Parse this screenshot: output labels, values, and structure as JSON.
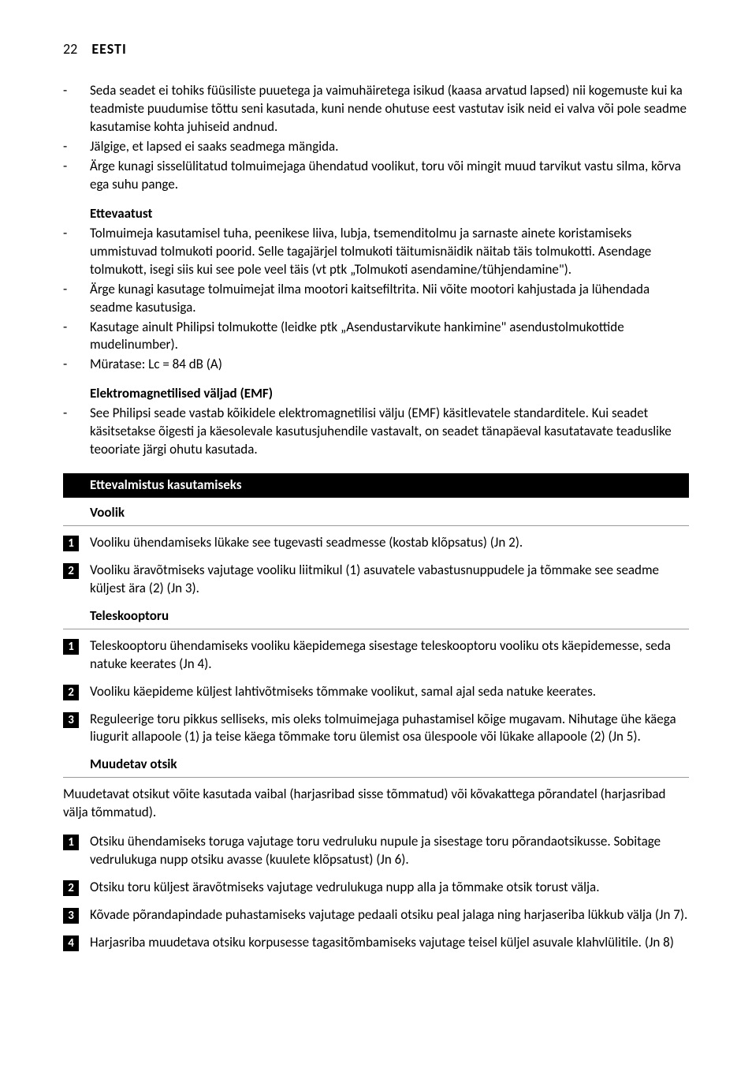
{
  "page": {
    "number": "22",
    "language": "EESTI"
  },
  "top_bullets": [
    "Seda seadet ei tohiks füüsiliste puuetega ja vaimuhäiretega isikud (kaasa arvatud lapsed) nii kogemuste kui ka teadmiste puudumise tõttu seni kasutada, kuni nende ohutuse eest vastutav isik neid ei valva või pole seadme kasutamise kohta juhiseid andnud.",
    "Jälgige, et lapsed ei saaks seadmega mängida.",
    "Ärge kunagi sisselülitatud tolmuimejaga ühendatud voolikut, toru või mingit muud tarvikut vastu silma, kõrva ega suhu pange."
  ],
  "ettevaatust": {
    "title": "Ettevaatust",
    "items": [
      "Tolmuimeja kasutamisel tuha, peenikese liiva, lubja, tsemenditolmu ja sarnaste ainete koristamiseks ummistuvad tolmukoti poorid. Selle tagajärjel tolmukoti täitumisnäidik näitab täis tolmukotti. Asendage tolmukott, isegi siis kui see pole veel täis (vt ptk „Tolmukoti asendamine/tühjendamine\").",
      "Ärge kunagi kasutage tolmuimejat ilma mootori kaitsefiltrita. Nii võite mootori kahjustada ja lühendada seadme kasutusiga.",
      "Kasutage ainult Philipsi tolmukotte (leidke ptk „Asendustarvikute hankimine\" asendustolmukottide mudelinumber).",
      "Müratase: Lc = 84 dB (A)"
    ]
  },
  "emf": {
    "title": "Elektromagnetilised väljad (EMF)",
    "items": [
      "See Philipsi seade vastab kõikidele elektromagnetilisi välju (EMF) käsitlevatele standarditele. Kui seadet käsitsetakse õigesti ja käesolevale kasutusjuhendile vastavalt, on seadet tänapäeval kasutatavate teaduslike teooriate järgi ohutu kasutada."
    ]
  },
  "preparation": {
    "banner": "Ettevalmistus kasutamiseks"
  },
  "voolik": {
    "title": "Voolik",
    "steps": [
      "Vooliku ühendamiseks lükake see tugevasti seadmesse (kostab klõpsatus) (Jn 2).",
      "Vooliku äravõtmiseks vajutage vooliku liitmikul (1) asuvatele vabastusnuppudele ja tõmmake see seadme küljest ära (2) (Jn 3)."
    ]
  },
  "teleskooptoru": {
    "title": "Teleskooptoru",
    "steps": [
      "Teleskooptoru ühendamiseks vooliku käepidemega sisestage teleskooptoru vooliku ots käepidemesse, seda natuke keerates (Jn 4).",
      "Vooliku käepideme küljest lahtivõtmiseks tõmmake voolikut, samal ajal seda natuke keerates.",
      "Reguleerige toru pikkus selliseks, mis oleks tolmuimejaga puhastamisel kõige mugavam. Nihutage ühe käega liugurit allapoole (1) ja teise käega tõmmake toru ülemist osa ülespoole või lükake allapoole (2) (Jn 5)."
    ]
  },
  "muudetav_otsik": {
    "title": "Muudetav otsik",
    "intro": "Muudetavat otsikut võite kasutada vaibal (harjasribad sisse tõmmatud) või kõvakattega põrandatel (harjasribad välja tõmmatud).",
    "steps": [
      "Otsiku ühendamiseks toruga vajutage toru vedruluku nupule ja sisestage toru põrandaotsikusse. Sobitage vedrulukuga nupp otsiku avasse (kuulete klõpsatust) (Jn 6).",
      "Otsiku toru küljest äravõtmiseks vajutage vedrulukuga nupp alla ja tõmmake otsik torust välja.",
      "Kõvade põrandapindade puhastamiseks vajutage pedaali otsiku peal jalaga ning harjaseriba lükkub välja (Jn 7).",
      "Harjasriba muudetava otsiku korpusesse tagasitõmbamiseks vajutage teisel küljel asuvale klahvlülitile.  (Jn 8)"
    ]
  },
  "style": {
    "background": "#ffffff",
    "text_color": "#000000",
    "banner_bg": "#000000",
    "banner_text": "#ffffff",
    "underline_color": "#999999",
    "badge_bg": "#000000",
    "badge_text": "#ffffff",
    "body_font_size": 17,
    "header_font_size": 18
  }
}
